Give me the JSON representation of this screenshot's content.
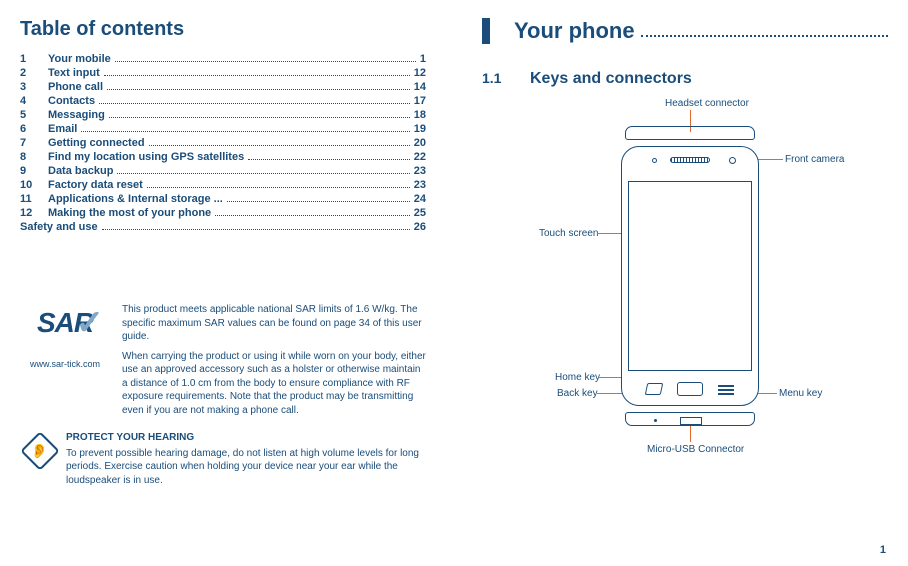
{
  "left": {
    "toc_title": "Table of contents",
    "toc": [
      {
        "num": "1",
        "label": "Your mobile",
        "page": "1"
      },
      {
        "num": "2",
        "label": "Text input",
        "page": "12"
      },
      {
        "num": "3",
        "label": "Phone call",
        "page": "14"
      },
      {
        "num": "4",
        "label": "Contacts",
        "page": "17"
      },
      {
        "num": "5",
        "label": "Messaging",
        "page": "18"
      },
      {
        "num": "6",
        "label": "Email",
        "page": "19"
      },
      {
        "num": "7",
        "label": "Getting connected",
        "page": "20"
      },
      {
        "num": "8",
        "label": "Find my location using GPS satellites",
        "page": "22"
      },
      {
        "num": "9",
        "label": "Data backup",
        "page": "23"
      },
      {
        "num": "10",
        "label": "Factory data reset",
        "page": "23"
      },
      {
        "num": "11",
        "label": "Applications & Internal storage ...",
        "page": "24"
      },
      {
        "num": "12",
        "label": "Making the most of your phone",
        "page": "25"
      },
      {
        "num": "",
        "label": "Safety and use",
        "page": "26"
      }
    ],
    "sar": {
      "logo_text": "SAR",
      "check": "✓",
      "url": "www.sar-tick.com",
      "p1": "This product meets applicable national SAR limits of 1.6 W/kg. The specific maximum SAR values can be found on page 34 of this user guide.",
      "p2": "When carrying the product or using it while worn on your body, either use an approved accessory such as a holster or otherwise maintain a distance of 1.0 cm from the body to ensure compliance with RF exposure requirements. Note that the product may be transmitting even if you are not making a phone call."
    },
    "hearing": {
      "title": "PROTECT YOUR HEARING",
      "body": "To prevent possible hearing damage, do not listen at high volume levels for long periods. Exercise caution when holding your device near your ear while the loudspeaker is in use."
    }
  },
  "right": {
    "chapter_title": "Your phone",
    "section": {
      "num": "1.1",
      "title": "Keys and connectors"
    },
    "labels": {
      "headset": "Headset connector",
      "front_camera": "Front camera",
      "touch_screen": "Touch screen",
      "home_key": "Home key",
      "back_key": "Back key",
      "menu_key": "Menu key",
      "micro_usb": "Micro-USB Connector"
    },
    "page_number": "1",
    "colors": {
      "text": "#1a4d7a",
      "callout": "#e06a2b"
    }
  }
}
